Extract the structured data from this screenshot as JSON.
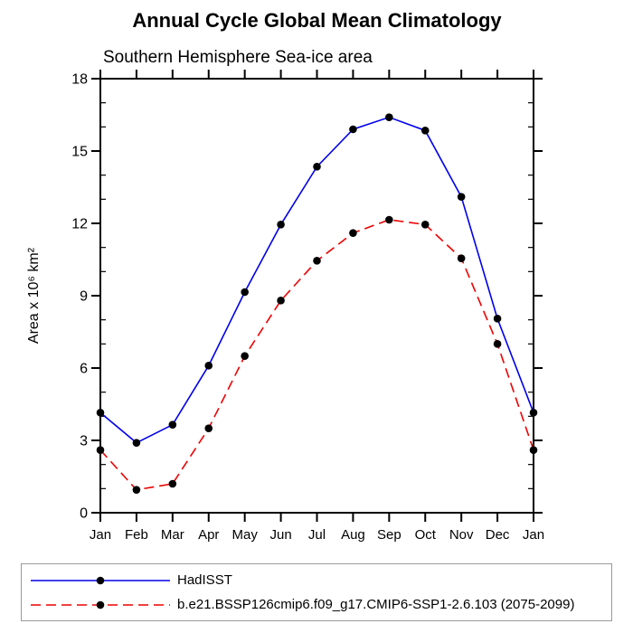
{
  "title": "Annual Cycle Global Mean Climatology",
  "subtitle": "Southern Hemisphere Sea-ice area",
  "chart_data": {
    "type": "line",
    "title": "Annual Cycle Global Mean Climatology",
    "subtitle": "Southern Hemisphere Sea-ice area",
    "ylabel": "Area x 10⁶ km²",
    "xlabel": "",
    "ylim": [
      0,
      18
    ],
    "y_major_ticks": [
      0,
      3,
      6,
      9,
      12,
      15,
      18
    ],
    "y_minor_step": 1,
    "grid": false,
    "legend_position": "bottom-box",
    "x_categories": [
      "Jan",
      "Feb",
      "Mar",
      "Apr",
      "May",
      "Jun",
      "Jul",
      "Aug",
      "Sep",
      "Oct",
      "Nov",
      "Dec",
      "Jan"
    ],
    "series": [
      {
        "name": "HadISST",
        "color": "#0000ee",
        "line_style": "solid",
        "marker": "black-dot",
        "values": [
          4.15,
          2.9,
          3.65,
          6.1,
          9.15,
          11.95,
          14.35,
          15.9,
          16.4,
          15.85,
          13.1,
          8.05,
          4.15
        ]
      },
      {
        "name": "b.e21.BSSP126cmip6.f09_g17.CMIP6-SSP1-2.6.103 (2075-2099)",
        "color": "#ee0000",
        "line_style": "dashed",
        "marker": "black-dot",
        "values": [
          2.6,
          0.95,
          1.2,
          3.5,
          6.5,
          8.8,
          10.45,
          11.6,
          12.15,
          11.95,
          10.55,
          7.0,
          2.6
        ]
      }
    ],
    "marker_color": "#000000",
    "axis_color": "#000000"
  }
}
